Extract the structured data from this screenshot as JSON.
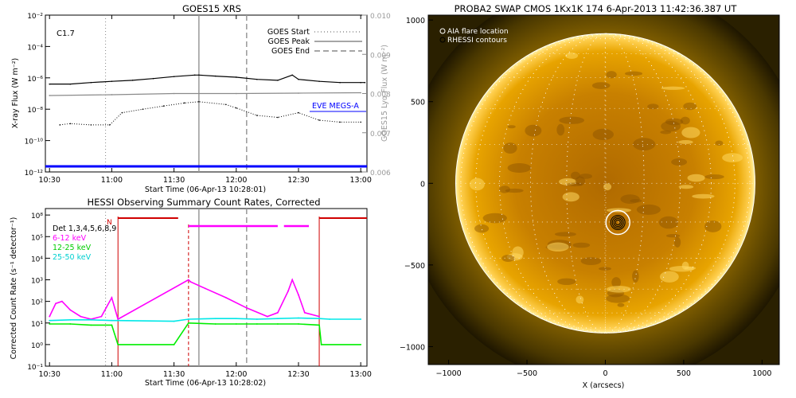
{
  "colors": {
    "goes_long": "#000000",
    "goes_short": "#8a8a8a",
    "eve": "#0000ff",
    "magenta": "#ff00ff",
    "green": "#00ee00",
    "cyan": "#00e8e8",
    "hessi_red": "#d00000",
    "sun": "#e8a000"
  },
  "chart_data": [
    {
      "type": "line",
      "title": "GOES15 XRS",
      "xlabel": "Start Time (06-Apr-13 10:28:01)",
      "ylabel": "X-ray Flux (W m⁻²)",
      "y2label": "GOES15 Lyα Flux (W m⁻²)",
      "yscale": "log",
      "x_ticks": [
        "10:30",
        "11:00",
        "11:30",
        "12:00",
        "12:30",
        "13:00"
      ],
      "y_ticks": [
        "10⁻²",
        "10⁻⁴",
        "10⁻⁶",
        "10⁻⁸",
        "10⁻¹⁰",
        "10⁻¹²"
      ],
      "y2_ticks": [
        "0.010",
        "0.009",
        "0.008",
        "0.007",
        "0.006"
      ],
      "ylim": [
        1e-12,
        0.01
      ],
      "y2lim": [
        0.006,
        0.01
      ],
      "flare_class": "C1.7",
      "legend": [
        {
          "name": "GOES Start",
          "style": "dotted"
        },
        {
          "name": "GOES Peak",
          "style": "solid"
        },
        {
          "name": "GOES End",
          "style": "dashed"
        }
      ],
      "eve_label": "EVE MEGS-A",
      "events": {
        "start": "10:57",
        "peak": "11:42",
        "end": "12:05"
      },
      "series": [
        {
          "name": "GOES long",
          "x": [
            "10:30",
            "10:40",
            "10:50",
            "11:00",
            "11:10",
            "11:20",
            "11:30",
            "11:40",
            "11:42",
            "11:50",
            "12:00",
            "12:10",
            "12:20",
            "12:27",
            "12:30",
            "12:40",
            "12:50",
            "13:00",
            "13:02"
          ],
          "values": [
            4e-07,
            4e-07,
            5e-07,
            6e-07,
            7e-07,
            9e-07,
            1.2e-06,
            1.5e-06,
            1.5e-06,
            1.3e-06,
            1.1e-06,
            8e-07,
            7e-07,
            1.5e-06,
            8e-07,
            6e-07,
            5e-07,
            5e-07,
            5e-07
          ]
        },
        {
          "name": "GOES short",
          "x": [
            "10:35",
            "10:40",
            "10:50",
            "10:59",
            "11:05",
            "11:15",
            "11:25",
            "11:35",
            "11:42",
            "11:55",
            "12:00",
            "12:10",
            "12:20",
            "12:30",
            "12:40",
            "12:50",
            "13:00"
          ],
          "values": [
            1e-09,
            1.2e-09,
            1e-09,
            1e-09,
            6e-09,
            1e-08,
            1.6e-08,
            2.5e-08,
            3e-08,
            2e-08,
            1.2e-08,
            4e-09,
            3e-09,
            6e-09,
            2e-09,
            1.5e-09,
            1.5e-09
          ]
        },
        {
          "name": "Lyman-alpha",
          "x": [
            "10:30",
            "11:00",
            "11:30",
            "12:00",
            "12:30",
            "13:00"
          ],
          "values": [
            0.00795,
            0.00797,
            0.008,
            0.008,
            0.00801,
            0.00802
          ]
        }
      ]
    },
    {
      "type": "line",
      "title": "HESSI Observing Summary Count Rates, Corrected",
      "xlabel": "Start Time (06-Apr-13 10:28:02)",
      "ylabel": "Corrected Count Rate (s⁻¹ detector⁻¹)",
      "yscale": "log",
      "ylim": [
        0.1,
        100000000.0
      ],
      "x_ticks": [
        "10:30",
        "11:00",
        "11:30",
        "12:00",
        "12:30",
        "13:00"
      ],
      "y_ticks": [
        "10⁸",
        "10⁵",
        "10⁴",
        "10³",
        "10²",
        "10¹",
        "10⁰",
        "10⁻¹"
      ],
      "legend": [
        {
          "name": "Det 1,3,4,5,6,8,9",
          "color": "#000000"
        },
        {
          "name": "6-12 keV",
          "color": "#ff00ff"
        },
        {
          "name": "12-25 keV",
          "color": "#00ee00"
        },
        {
          "name": "25-50 keV",
          "color": "#00e8e8"
        }
      ],
      "flag_label": "N",
      "events": {
        "start": "10:57",
        "peak": "11:42",
        "end": "12:05",
        "night_start": "11:03",
        "night_end": "11:37",
        "saa": "12:40"
      },
      "series": [
        {
          "name": "6-12 keV",
          "x": [
            "10:30",
            "10:33",
            "10:36",
            "10:40",
            "10:45",
            "10:50",
            "10:55",
            "11:00",
            "11:03",
            "11:37",
            "11:38",
            "11:45",
            "11:55",
            "12:05",
            "12:15",
            "12:20",
            "12:25",
            "12:27",
            "12:30",
            "12:33",
            "12:40"
          ],
          "values": [
            20,
            80,
            100,
            40,
            20,
            15,
            20,
            150,
            15,
            1000,
            800,
            400,
            150,
            50,
            20,
            30,
            300,
            1000,
            200,
            30,
            20
          ]
        },
        {
          "name": "12-25 keV",
          "x": [
            "10:30",
            "10:40",
            "10:50",
            "11:00",
            "11:03",
            "11:30",
            "11:37",
            "11:50",
            "12:00",
            "12:10",
            "12:20",
            "12:30",
            "12:40",
            "12:41",
            "13:00"
          ],
          "values": [
            9,
            9,
            8,
            8,
            1,
            1,
            10,
            9,
            9,
            9,
            9,
            9,
            8,
            1,
            1
          ]
        },
        {
          "name": "25-50 keV",
          "x": [
            "10:30",
            "10:40",
            "10:50",
            "11:00",
            "11:03",
            "11:30",
            "11:37",
            "11:50",
            "12:00",
            "12:10",
            "12:20",
            "12:30",
            "12:40",
            "12:45",
            "13:00"
          ],
          "values": [
            13,
            14,
            14,
            13,
            13,
            12,
            15,
            16,
            16,
            15,
            16,
            17,
            16,
            15,
            15
          ]
        }
      ]
    },
    {
      "type": "heatmap",
      "title": "PROBA2 SWAP CMOS 1Kx1K 174   6-Apr-2013 11:42:36.387 UT",
      "xlabel": "X (arcsecs)",
      "ylabel": "",
      "x_ticks": [
        "−1000",
        "−500",
        "0",
        "500",
        "1000"
      ],
      "y_ticks": [
        "1000",
        "500",
        "0",
        "−500",
        "−1000"
      ],
      "xlim": [
        -1130,
        1110
      ],
      "ylim": [
        -1110,
        1030
      ],
      "legend": [
        {
          "name": "AIA flare location",
          "color": "#ffffff"
        },
        {
          "name": "RHESSI contours",
          "color": "#000000"
        }
      ],
      "flare_location": {
        "x": 80,
        "y": -240
      },
      "solar_radius_arcsec": 955
    }
  ]
}
